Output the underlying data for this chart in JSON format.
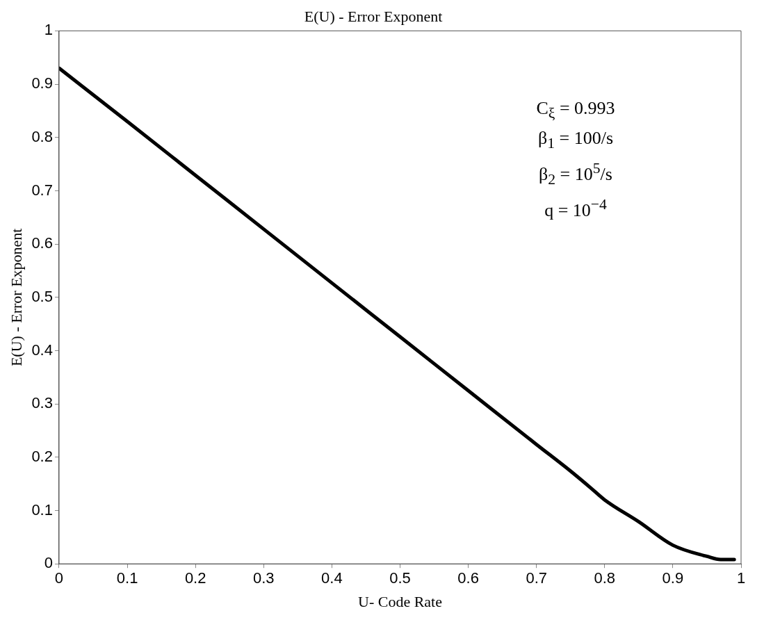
{
  "chart_data": {
    "type": "line",
    "title": "E(U) - Error Exponent",
    "xlabel": "U- Code Rate",
    "ylabel": "E(U) - Error Exponent",
    "x": [
      0,
      0.1,
      0.2,
      0.3,
      0.4,
      0.5,
      0.6,
      0.7,
      0.75,
      0.78,
      0.8,
      0.85,
      0.9,
      0.95,
      0.97,
      0.99
    ],
    "series": [
      {
        "color": "#000000",
        "values": [
          0.93,
          0.83,
          0.729,
          0.628,
          0.527,
          0.426,
          0.325,
          0.224,
          0.174,
          0.142,
          0.12,
          0.079,
          0.035,
          0.014,
          0.008,
          0.008
        ]
      }
    ],
    "xlim": [
      0,
      1
    ],
    "xticks": [
      0,
      0.1,
      0.2,
      0.3,
      0.4,
      0.5,
      0.6,
      0.7,
      0.8,
      0.9,
      1
    ],
    "ylim": [
      0,
      1
    ],
    "yticks": [
      0,
      0.1,
      0.2,
      0.3,
      0.4,
      0.5,
      0.6,
      0.7,
      0.8,
      0.9,
      1
    ],
    "grid": false,
    "legend": false,
    "marker": "none",
    "line_style": "solid",
    "annotations": [
      "C$_{ξ}$ = 0.993",
      "β$_{1}$ = 100/s",
      "β$_{2}$ = 10$^{5}$/s",
      "q = 10$^{−4}$"
    ]
  }
}
